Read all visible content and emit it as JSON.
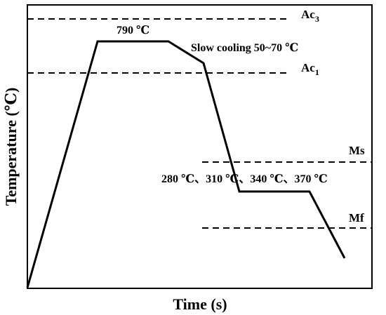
{
  "axes": {
    "xlabel": "Time (s)",
    "ylabel": "Temperature (℃)"
  },
  "annotations": {
    "hold_temp": "790 ℃",
    "cooling": "Slow cooling 50~70 ℃",
    "isothermal_temps": "280 ℃、310 ℃、340 ℃、370 ℃"
  },
  "reference_lines": {
    "ac3": {
      "base": "Ac",
      "sub": "3"
    },
    "ac1": {
      "base": "Ac",
      "sub": "1"
    },
    "ms": "Ms",
    "mf": "Mf"
  },
  "style": {
    "line_color": "#000000",
    "background": "#ffffff"
  }
}
